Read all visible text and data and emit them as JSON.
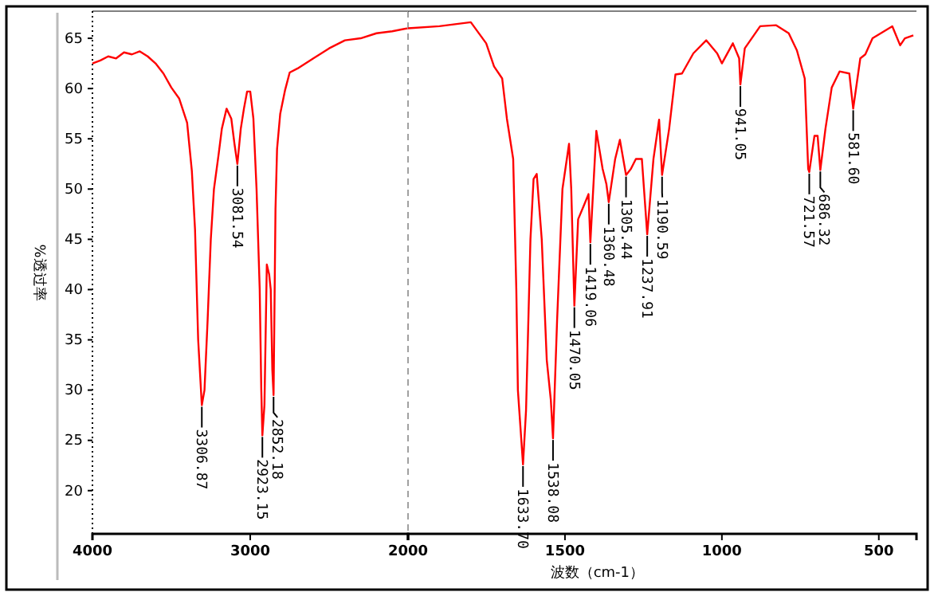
{
  "chart_data": [
    {
      "type": "line",
      "ylabel": "%透过率",
      "xlim": [
        4000,
        2000
      ],
      "ylim": [
        15.7,
        67.7
      ],
      "xticks": [
        4000,
        3000,
        2000
      ],
      "yticks": [
        20,
        25,
        30,
        35,
        40,
        45,
        50,
        55,
        60,
        65
      ],
      "grid": false,
      "marker": "none",
      "line_style": "solid",
      "series": [
        {
          "color": "#ff0000",
          "x": [
            4000,
            3950,
            3900,
            3850,
            3800,
            3750,
            3700,
            3650,
            3600,
            3550,
            3500,
            3450,
            3400,
            3370,
            3350,
            3330,
            3306.87,
            3290,
            3270,
            3250,
            3230,
            3200,
            3180,
            3150,
            3120,
            3100,
            3081.54,
            3060,
            3040,
            3020,
            3000,
            2980,
            2960,
            2940,
            2930,
            2923.15,
            2910,
            2895,
            2880,
            2870,
            2860,
            2852.18,
            2840,
            2830,
            2810,
            2780,
            2750,
            2700,
            2600,
            2500,
            2400,
            2300,
            2200,
            2100,
            2000
          ],
          "values": [
            62.5,
            62.8,
            63.2,
            63.0,
            63.6,
            63.4,
            63.7,
            63.2,
            62.5,
            61.5,
            60.1,
            59.0,
            56.6,
            51.8,
            46.0,
            35.0,
            28.5,
            30.0,
            37.0,
            45.0,
            50.0,
            53.5,
            56.0,
            58.0,
            57.0,
            54.5,
            52.5,
            56.0,
            58.0,
            59.7,
            59.7,
            57.0,
            50.0,
            40.0,
            30.0,
            25.5,
            28.5,
            42.5,
            41.5,
            40.0,
            32.0,
            29.5,
            48.0,
            54.0,
            57.5,
            59.8,
            61.6,
            62.0,
            63.0,
            64.0,
            64.8,
            65.0,
            65.5,
            65.7,
            66.0
          ]
        }
      ],
      "annotations": [
        {
          "text": "3306.87",
          "x": 3306.87,
          "y": 28.5
        },
        {
          "text": "3081.54",
          "x": 3081.54,
          "y": 52.5
        },
        {
          "text": "2923.15",
          "x": 2923.15,
          "y": 25.5
        },
        {
          "text": "2852.18",
          "x": 2852.18,
          "y": 29.5
        }
      ]
    },
    {
      "type": "line",
      "xlabel": "波数（cm-1）",
      "xlim": [
        2000,
        380
      ],
      "ylim": [
        15.7,
        67.7
      ],
      "xticks": [
        1500,
        1000,
        500
      ],
      "tick_labels": "x",
      "grid": false,
      "marker": "none",
      "line_style": "solid",
      "ref_lines": [
        {
          "axis": "x",
          "value": 2000,
          "label": null,
          "color": "#a0a0a0",
          "line_style": "dashed"
        }
      ],
      "series": [
        {
          "color": "#ff0000",
          "x": [
            2000,
            1900,
            1800,
            1751,
            1726,
            1700,
            1685,
            1665,
            1655,
            1650,
            1633.7,
            1624,
            1610,
            1600,
            1590,
            1574,
            1558,
            1545,
            1538.08,
            1525,
            1508,
            1487,
            1480,
            1470.05,
            1458,
            1438,
            1425,
            1419.06,
            1400,
            1380,
            1368,
            1360.48,
            1340,
            1325,
            1305.44,
            1290,
            1274,
            1255,
            1237.91,
            1218,
            1200,
            1190.59,
            1168,
            1148,
            1127,
            1091,
            1050,
            1015,
            1000,
            965,
            945,
            941.05,
            927,
            878,
            827,
            787,
            761,
            736,
            725,
            721.57,
            705,
            695,
            686.32,
            670,
            650,
            625,
            594,
            581.6,
            559,
            543,
            520,
            457,
            432,
            417,
            390
          ],
          "values": [
            66.0,
            66.2,
            66.6,
            64.5,
            62.2,
            61.0,
            57.0,
            53.0,
            40.0,
            30.0,
            22.6,
            28.0,
            45.0,
            51.0,
            51.5,
            45.0,
            33.0,
            29.0,
            25.2,
            37.0,
            50.0,
            54.5,
            50.0,
            38.4,
            47.0,
            48.5,
            49.5,
            44.7,
            55.8,
            52.0,
            50.5,
            48.7,
            53.0,
            54.9,
            51.4,
            52.0,
            53.0,
            53.0,
            45.5,
            53.0,
            56.9,
            51.4,
            56.0,
            61.4,
            61.5,
            63.5,
            64.8,
            63.5,
            62.5,
            64.5,
            63.0,
            60.4,
            64.0,
            66.2,
            66.3,
            65.5,
            63.8,
            61.0,
            52.0,
            51.7,
            55.3,
            55.3,
            51.9,
            56.0,
            60.1,
            61.7,
            61.5,
            58.0,
            63.0,
            63.4,
            65.0,
            66.2,
            64.3,
            65.0,
            65.3
          ]
        }
      ],
      "annotations": [
        {
          "text": "1633.70",
          "x": 1633.7,
          "y": 22.6
        },
        {
          "text": "1538.08",
          "x": 1538.08,
          "y": 25.2
        },
        {
          "text": "1470.05",
          "x": 1470.05,
          "y": 38.4
        },
        {
          "text": "1419.06",
          "x": 1419.06,
          "y": 44.7
        },
        {
          "text": "1360.48",
          "x": 1360.48,
          "y": 48.7
        },
        {
          "text": "1305.44",
          "x": 1305.44,
          "y": 51.4
        },
        {
          "text": "1237.91",
          "x": 1237.91,
          "y": 45.5
        },
        {
          "text": "1190.59",
          "x": 1190.59,
          "y": 51.4
        },
        {
          "text": "941.05",
          "x": 941.05,
          "y": 60.4
        },
        {
          "text": "721.57",
          "x": 721.57,
          "y": 51.7
        },
        {
          "text": "686.32",
          "x": 686.32,
          "y": 51.9
        },
        {
          "text": "581.60",
          "x": 581.6,
          "y": 58.0
        }
      ]
    }
  ]
}
